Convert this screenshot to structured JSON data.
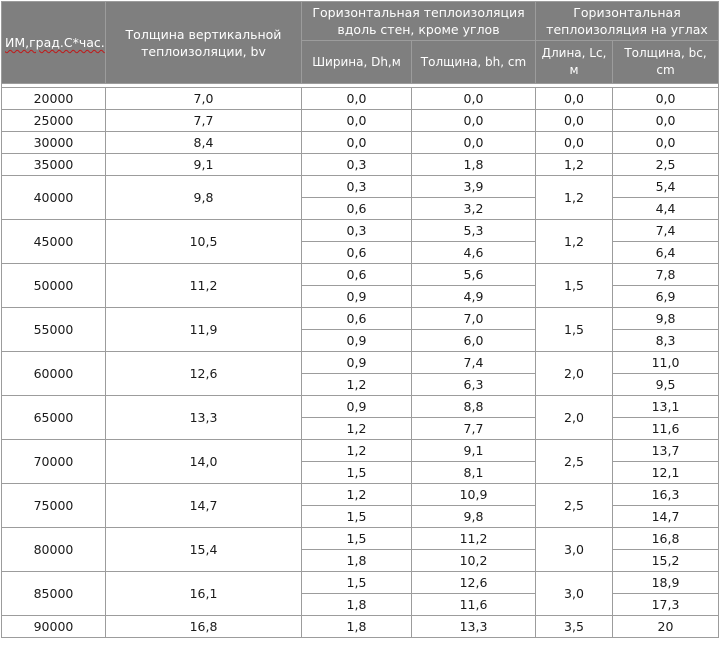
{
  "header": {
    "col_im": "ИМ,град.С*час.",
    "col_vertical": "Толщина вертикальной теплоизоляции, bv",
    "group_walls": "Горизонтальная теплоизоляция вдоль стен, кроме углов",
    "group_corners": "Горизонтальная теплоизоляция на углах",
    "walls_width": "Ширина, Dh,м",
    "walls_thickness": "Толщина, bh, cm",
    "corners_length": "Длина, Lc, м",
    "corners_thickness": "Толщина, bc, cm"
  },
  "rows": [
    {
      "im": "20000",
      "bv": "7,0",
      "lc": "0,0",
      "lines": [
        {
          "dh": "0,0",
          "bh": "0,0",
          "bc": "0,0"
        }
      ]
    },
    {
      "im": "25000",
      "bv": "7,7",
      "lc": "0,0",
      "lines": [
        {
          "dh": "0,0",
          "bh": "0,0",
          "bc": "0,0"
        }
      ]
    },
    {
      "im": "30000",
      "bv": "8,4",
      "lc": "0,0",
      "lines": [
        {
          "dh": "0,0",
          "bh": "0,0",
          "bc": "0,0"
        }
      ]
    },
    {
      "im": "35000",
      "bv": "9,1",
      "lc": "1,2",
      "lines": [
        {
          "dh": "0,3",
          "bh": "1,8",
          "bc": "2,5"
        }
      ]
    },
    {
      "im": "40000",
      "bv": "9,8",
      "lc": "1,2",
      "lines": [
        {
          "dh": "0,3",
          "bh": "3,9",
          "bc": "5,4"
        },
        {
          "dh": "0,6",
          "bh": "3,2",
          "bc": "4,4"
        }
      ]
    },
    {
      "im": "45000",
      "bv": "10,5",
      "lc": "1,2",
      "lines": [
        {
          "dh": "0,3",
          "bh": "5,3",
          "bc": "7,4"
        },
        {
          "dh": "0,6",
          "bh": "4,6",
          "bc": "6,4"
        }
      ]
    },
    {
      "im": "50000",
      "bv": "11,2",
      "lc": "1,5",
      "lines": [
        {
          "dh": "0,6",
          "bh": "5,6",
          "bc": "7,8"
        },
        {
          "dh": "0,9",
          "bh": "4,9",
          "bc": "6,9"
        }
      ]
    },
    {
      "im": "55000",
      "bv": "11,9",
      "lc": "1,5",
      "lines": [
        {
          "dh": "0,6",
          "bh": "7,0",
          "bc": "9,8"
        },
        {
          "dh": "0,9",
          "bh": "6,0",
          "bc": "8,3"
        }
      ]
    },
    {
      "im": "60000",
      "bv": "12,6",
      "lc": "2,0",
      "lines": [
        {
          "dh": "0,9",
          "bh": "7,4",
          "bc": "11,0"
        },
        {
          "dh": "1,2",
          "bh": "6,3",
          "bc": "9,5"
        }
      ]
    },
    {
      "im": "65000",
      "bv": "13,3",
      "lc": "2,0",
      "lines": [
        {
          "dh": "0,9",
          "bh": "8,8",
          "bc": "13,1"
        },
        {
          "dh": "1,2",
          "bh": "7,7",
          "bc": "11,6"
        }
      ]
    },
    {
      "im": "70000",
      "bv": "14,0",
      "lc": "2,5",
      "lines": [
        {
          "dh": "1,2",
          "bh": "9,1",
          "bc": "13,7"
        },
        {
          "dh": "1,5",
          "bh": "8,1",
          "bc": "12,1"
        }
      ]
    },
    {
      "im": "75000",
      "bv": "14,7",
      "lc": "2,5",
      "lines": [
        {
          "dh": "1,2",
          "bh": "10,9",
          "bc": "16,3"
        },
        {
          "dh": "1,5",
          "bh": "9,8",
          "bc": "14,7"
        }
      ]
    },
    {
      "im": "80000",
      "bv": "15,4",
      "lc": "3,0",
      "lines": [
        {
          "dh": "1,5",
          "bh": "11,2",
          "bc": "16,8"
        },
        {
          "dh": "1,8",
          "bh": "10,2",
          "bc": "15,2"
        }
      ]
    },
    {
      "im": "85000",
      "bv": "16,1",
      "lc": "3,0",
      "lines": [
        {
          "dh": "1,5",
          "bh": "12,6",
          "bc": "18,9"
        },
        {
          "dh": "1,8",
          "bh": "11,6",
          "bc": "17,3"
        }
      ]
    },
    {
      "im": "90000",
      "bv": "16,8",
      "lc": "3,5",
      "lines": [
        {
          "dh": "1,8",
          "bh": "13,3",
          "bc": "20"
        }
      ]
    }
  ]
}
